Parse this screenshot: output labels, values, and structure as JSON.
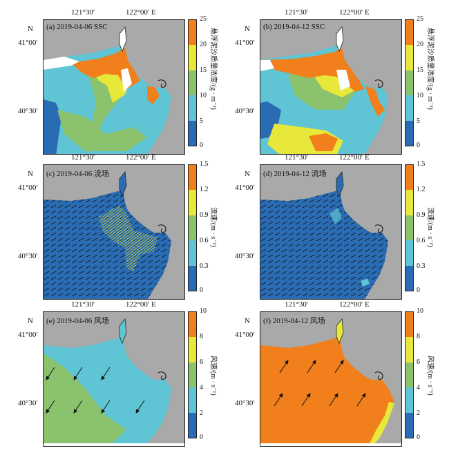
{
  "axes": {
    "lon_labels": [
      "121°30′",
      "122°00′ E"
    ],
    "lat_labels": [
      "N",
      "41°00′",
      "40°30′"
    ]
  },
  "colors": {
    "land": "#a9a9a9",
    "water_blue": "#2a6cb3",
    "c_cyan": "#5fc4d3",
    "c_green": "#8ac26d",
    "c_yellow": "#e8e83a",
    "c_orange": "#f07f1c",
    "vector": "#111111"
  },
  "panels": [
    {
      "id": "a",
      "title": "(a) 2019-04-06 SSC",
      "layer": "ssc"
    },
    {
      "id": "b",
      "title": "(b) 2019-04-12 SSC",
      "layer": "ssc"
    },
    {
      "id": "c",
      "title": "(c) 2019-04-06 流场",
      "layer": "current"
    },
    {
      "id": "d",
      "title": "(d) 2019-04-12 流场",
      "layer": "current"
    },
    {
      "id": "e",
      "title": "(e) 2019-04-06 风场",
      "layer": "wind"
    },
    {
      "id": "f",
      "title": "(f) 2019-04-12 风场",
      "layer": "wind"
    }
  ],
  "colorbars": {
    "ssc": {
      "ticks": [
        "25",
        "20",
        "15",
        "10",
        "5",
        "0"
      ],
      "title": "悬浮泥沙质量浓度/(g · m⁻³)"
    },
    "current": {
      "ticks": [
        "1.5",
        "1.2",
        "0.9",
        "0.6",
        "0.3",
        "0"
      ],
      "title": "流速/(m · s⁻¹)"
    },
    "wind": {
      "ticks": [
        "10",
        "8",
        "6",
        "4",
        "2",
        "0"
      ],
      "title": "风速/(m · s⁻¹)"
    }
  }
}
